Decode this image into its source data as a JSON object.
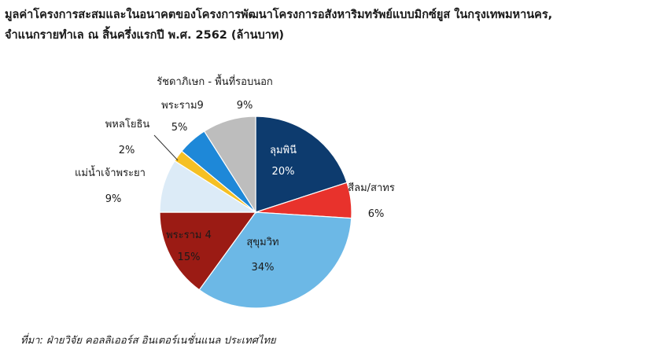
{
  "title_line1": "มูลค่าโครงการสะสมและในอนาคตของโครงการพัฒนาโครงการอสังหาริมทรัพย์แบบมิกซ์ยูส ในกรุงเทพมหานคร,",
  "title_line2": "จำแนกรายทำเล ณ สิ้นครึ่งแรกปี พ.ศ. 2562 (ล้านบาท)",
  "source": "ที่มา: ฝ่ายวิจัย คอลลิเออร์ส อินเตอร์เนชั่นแนล ประเทศไทย",
  "chart_data": {
    "type": "pie",
    "title": "",
    "slices": [
      {
        "name": "ลุมพินี",
        "value": 20,
        "label": "20%",
        "color": "#0d3b6e",
        "text_color": "#ffffff"
      },
      {
        "name": "สีลม/สาทร",
        "value": 6,
        "label": "6%",
        "color": "#e8322c",
        "text_color": "#1a1a1a"
      },
      {
        "name": "สุขุมวิท",
        "value": 34,
        "label": "34%",
        "color": "#6cb8e6",
        "text_color": "#1a1a1a"
      },
      {
        "name": "พระราม 4",
        "value": 15,
        "label": "15%",
        "color": "#9b1b14",
        "text_color": "#1a1a1a"
      },
      {
        "name": "แม่น้ำเจ้าพระยา",
        "value": 9,
        "label": "9%",
        "color": "#dcebf7",
        "text_color": "#1a1a1a"
      },
      {
        "name": "พหลโยธิน",
        "value": 2,
        "label": "2%",
        "color": "#f5c024",
        "text_color": "#1a1a1a"
      },
      {
        "name": "พระราม9",
        "value": 5,
        "label": "5%",
        "color": "#1e88d8",
        "text_color": "#1a1a1a"
      },
      {
        "name": "รัชดาภิเษก - พื้นที่รอบนอก",
        "value": 9,
        "label": "9%",
        "color": "#bdbdbd",
        "text_color": "#1a1a1a"
      }
    ]
  }
}
